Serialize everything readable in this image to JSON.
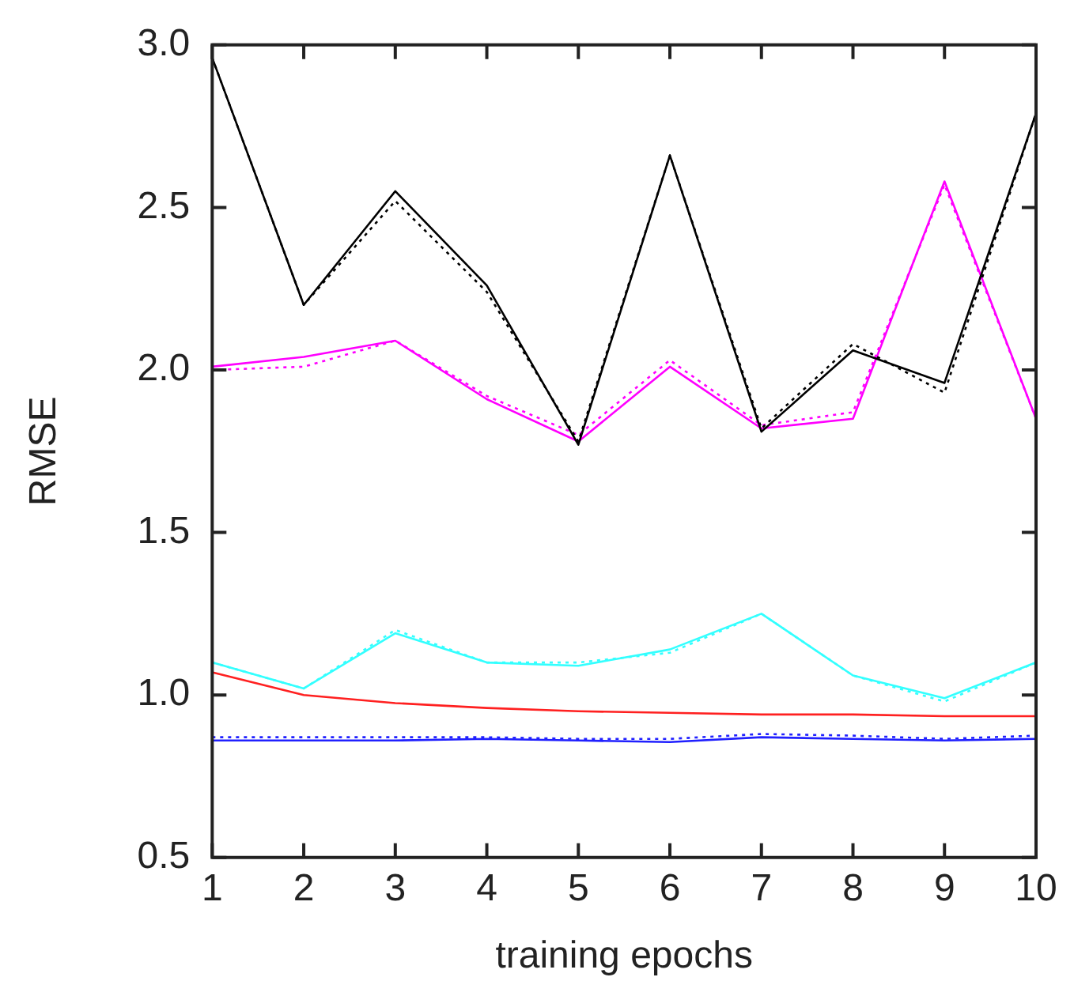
{
  "chart_data": {
    "type": "line",
    "xlabel": "training epochs",
    "ylabel": "RMSE",
    "x": [
      1,
      2,
      3,
      4,
      5,
      6,
      7,
      8,
      9,
      10
    ],
    "xlim": [
      1,
      10
    ],
    "xticks": [
      1,
      2,
      3,
      4,
      5,
      6,
      7,
      8,
      9,
      10
    ],
    "ylim": [
      0.5,
      3.0
    ],
    "yticks": [
      {
        "value": 0.5,
        "label": "0.5"
      },
      {
        "value": 1.0,
        "label": "1.0"
      },
      {
        "value": 1.5,
        "label": "1.5"
      },
      {
        "value": 2.0,
        "label": "2.0"
      },
      {
        "value": 2.5,
        "label": "2.5"
      },
      {
        "value": 3.0,
        "label": "3.0"
      }
    ],
    "grid": false,
    "legend": false,
    "marker": "none",
    "series": [
      {
        "color": "#000000",
        "line_style": "solid",
        "values": [
          2.96,
          2.2,
          2.55,
          2.26,
          1.77,
          2.66,
          1.81,
          2.06,
          1.96,
          2.79
        ]
      },
      {
        "color": "#000000",
        "line_style": "dotted",
        "values": [
          2.96,
          2.2,
          2.52,
          2.24,
          1.78,
          2.66,
          1.82,
          2.08,
          1.93,
          2.79
        ]
      },
      {
        "color": "#ff00ff",
        "line_style": "solid",
        "values": [
          2.01,
          2.04,
          2.09,
          1.91,
          1.78,
          2.01,
          1.82,
          1.85,
          2.58,
          1.85
        ]
      },
      {
        "color": "#ff00ff",
        "line_style": "dotted",
        "values": [
          2.0,
          2.01,
          2.09,
          1.92,
          1.8,
          2.03,
          1.83,
          1.87,
          2.57,
          1.85
        ]
      },
      {
        "color": "#33ffff",
        "line_style": "solid",
        "values": [
          1.1,
          1.02,
          1.19,
          1.1,
          1.09,
          1.14,
          1.25,
          1.06,
          0.99,
          1.1
        ]
      },
      {
        "color": "#33ffff",
        "line_style": "dotted",
        "values": [
          1.1,
          1.02,
          1.2,
          1.1,
          1.1,
          1.13,
          1.25,
          1.06,
          0.98,
          1.1
        ]
      },
      {
        "color": "#ff2020",
        "line_style": "solid",
        "values": [
          1.07,
          1.0,
          0.975,
          0.96,
          0.95,
          0.945,
          0.94,
          0.94,
          0.935,
          0.935
        ]
      },
      {
        "color": "#2020ff",
        "line_style": "solid",
        "values": [
          0.86,
          0.86,
          0.86,
          0.865,
          0.86,
          0.855,
          0.87,
          0.865,
          0.86,
          0.865
        ]
      },
      {
        "color": "#2020ff",
        "line_style": "dotted",
        "values": [
          0.87,
          0.87,
          0.87,
          0.87,
          0.865,
          0.865,
          0.88,
          0.875,
          0.865,
          0.875
        ]
      }
    ]
  }
}
